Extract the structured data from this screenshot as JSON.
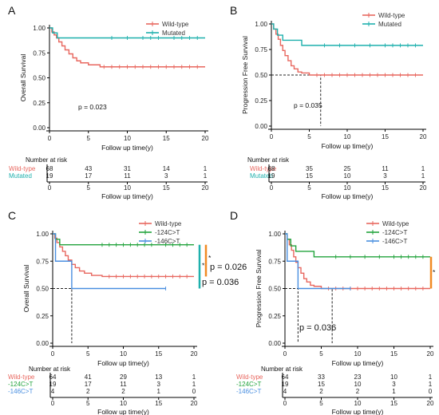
{
  "colors": {
    "wild": "#e8675f",
    "mut": "#1fb0ad",
    "c124": "#22a33c",
    "c146": "#4a8fe0",
    "sig": "#f08a24"
  },
  "chart_data": [
    {
      "panel": "A",
      "type": "line",
      "xlabel": "Follow up time(y)",
      "ylabel": "Overall Survival",
      "xlim": [
        0,
        20
      ],
      "ylim": [
        0,
        1
      ],
      "xticks": [
        0,
        5,
        10,
        15,
        20
      ],
      "yticks": [
        "0.00",
        "0.25",
        "0.50",
        "0.75",
        "1.00"
      ],
      "grid": false,
      "legend_position": "top-right",
      "series": [
        {
          "name": "Wild-type",
          "color": "wild",
          "x": [
            0,
            0.3,
            0.6,
            0.9,
            1.2,
            1.6,
            2.0,
            2.5,
            3.0,
            3.5,
            4.0,
            5.0,
            6.5,
            20
          ],
          "y": [
            1.0,
            0.96,
            0.93,
            0.9,
            0.86,
            0.82,
            0.78,
            0.74,
            0.7,
            0.67,
            0.65,
            0.63,
            0.61,
            0.61
          ],
          "censor": [
            7,
            8,
            9,
            10,
            11,
            12,
            13,
            14,
            15,
            16,
            17,
            18,
            19
          ]
        },
        {
          "name": "Mutated",
          "color": "mut",
          "x": [
            0,
            0.4,
            1.0,
            20
          ],
          "y": [
            1.0,
            0.95,
            0.9,
            0.9
          ],
          "censor": [
            8,
            10,
            12,
            13,
            14,
            16,
            17,
            18,
            19
          ]
        }
      ],
      "annotations": [
        {
          "text": "p = 0.023"
        }
      ],
      "risk_table": {
        "title": "Number at risk",
        "xlabel": "Follow up time(y)",
        "xticks": [
          0,
          5,
          10,
          15,
          20
        ],
        "rows": [
          {
            "label": "Wild-type",
            "color": "wild",
            "values": [
              68,
              43,
              31,
              14,
              1
            ]
          },
          {
            "label": "Mutated",
            "color": "mut",
            "values": [
              19,
              17,
              11,
              3,
              1
            ]
          }
        ]
      }
    },
    {
      "panel": "B",
      "type": "line",
      "xlabel": "Follow up time(y)",
      "ylabel": "Progression Free Survival",
      "xlim": [
        0,
        20
      ],
      "ylim": [
        0,
        1
      ],
      "xticks": [
        0,
        5,
        10,
        15,
        20
      ],
      "yticks": [
        "0.00",
        "0.25",
        "0.50",
        "0.75",
        "1.00"
      ],
      "grid": false,
      "legend_position": "top-right",
      "series": [
        {
          "name": "Wild-type",
          "color": "wild",
          "x": [
            0,
            0.3,
            0.6,
            0.9,
            1.2,
            1.5,
            1.8,
            2.2,
            2.6,
            3.0,
            3.5,
            4.0,
            5.0,
            20
          ],
          "y": [
            1.0,
            0.95,
            0.9,
            0.85,
            0.79,
            0.74,
            0.69,
            0.64,
            0.59,
            0.56,
            0.53,
            0.52,
            0.5,
            0.5
          ],
          "censor": [
            6,
            7,
            8,
            9,
            10,
            11,
            12,
            13,
            14,
            15,
            16,
            17,
            18,
            19
          ]
        },
        {
          "name": "Mutated",
          "color": "mut",
          "x": [
            0,
            0.3,
            0.8,
            1.5,
            2.5,
            4.0,
            20
          ],
          "y": [
            1.0,
            0.95,
            0.89,
            0.84,
            0.84,
            0.79,
            0.79
          ],
          "censor": [
            7,
            9,
            11,
            13,
            15,
            16,
            17,
            18,
            19
          ]
        }
      ],
      "median_x": 6.5,
      "annotations": [
        {
          "text": "p = 0.035"
        }
      ],
      "risk_table": {
        "title": "Number at risk",
        "xlabel": "Follow up time(y)",
        "xticks": [
          0,
          5,
          10,
          15,
          20
        ],
        "rows": [
          {
            "label": "Wild-type",
            "color": "wild",
            "values": [
              68,
              35,
              25,
              11,
              1
            ]
          },
          {
            "label": "Mutated",
            "color": "mut",
            "values": [
              19,
              15,
              10,
              3,
              1
            ]
          }
        ]
      }
    },
    {
      "panel": "C",
      "type": "line",
      "xlabel": "Follow up time(y)",
      "ylabel": "Overall Survival",
      "xlim": [
        0,
        20
      ],
      "ylim": [
        0,
        1
      ],
      "xticks": [
        0,
        5,
        10,
        15,
        20
      ],
      "yticks": [
        "0.00",
        "0.25",
        "0.50",
        "0.75",
        "1.00"
      ],
      "grid": false,
      "legend_position": "top-right",
      "series": [
        {
          "name": "Wild-type",
          "color": "wild",
          "x": [
            0,
            0.3,
            0.6,
            1.0,
            1.4,
            1.8,
            2.2,
            2.7,
            3.2,
            3.8,
            4.5,
            5.5,
            7.0,
            20
          ],
          "y": [
            1.0,
            0.96,
            0.92,
            0.88,
            0.84,
            0.8,
            0.76,
            0.72,
            0.69,
            0.66,
            0.64,
            0.62,
            0.61,
            0.61
          ],
          "censor": [
            8,
            9,
            10,
            11,
            12,
            13,
            14,
            15,
            16,
            17,
            18,
            19
          ]
        },
        {
          "name": "-124C>T",
          "color": "c124",
          "x": [
            0,
            0.4,
            1.0,
            20
          ],
          "y": [
            1.0,
            0.95,
            0.9,
            0.9
          ],
          "censor": [
            7,
            8,
            9,
            10,
            11,
            12,
            13,
            14,
            16,
            17,
            18,
            19
          ]
        },
        {
          "name": "-146C>T",
          "color": "c146",
          "x": [
            0,
            0.4,
            1.5,
            2.7,
            16
          ],
          "y": [
            1.0,
            0.75,
            0.75,
            0.5,
            0.5
          ],
          "censor": [
            16
          ]
        }
      ],
      "median_x": 2.7,
      "annotations": [
        {
          "text": "p = 0.026"
        },
        {
          "text": "p = 0.036"
        },
        {
          "text": "*"
        }
      ],
      "risk_table": {
        "title": "Number at risk",
        "xlabel": "Follow up time(y)",
        "xticks": [
          0,
          5,
          10,
          15,
          20
        ],
        "rows": [
          {
            "label": "Wild-type",
            "color": "wild",
            "values": [
              64,
              41,
              29,
              13,
              1
            ]
          },
          {
            "label": "-124C>T",
            "color": "c124",
            "values": [
              19,
              17,
              11,
              3,
              1
            ]
          },
          {
            "label": "-146C>T",
            "color": "c146",
            "values": [
              4,
              2,
              2,
              1,
              0
            ]
          }
        ]
      }
    },
    {
      "panel": "D",
      "type": "line",
      "xlabel": "Follow up time(y)",
      "ylabel": "Progression Free Survival",
      "xlim": [
        0,
        20
      ],
      "ylim": [
        0,
        1
      ],
      "xticks": [
        0,
        5,
        10,
        15,
        20
      ],
      "yticks": [
        "0.00",
        "0.25",
        "0.50",
        "0.75",
        "1.00"
      ],
      "grid": false,
      "legend_position": "top-right",
      "series": [
        {
          "name": "Wild-type",
          "color": "wild",
          "x": [
            0,
            0.3,
            0.6,
            0.9,
            1.2,
            1.5,
            1.8,
            2.2,
            2.6,
            3.0,
            3.5,
            4.0,
            5.0,
            20
          ],
          "y": [
            1.0,
            0.95,
            0.9,
            0.85,
            0.79,
            0.74,
            0.69,
            0.64,
            0.59,
            0.56,
            0.53,
            0.52,
            0.5,
            0.5
          ],
          "censor": [
            6,
            7,
            8,
            9,
            10,
            11,
            12,
            13,
            14,
            15,
            16,
            17,
            18,
            19
          ]
        },
        {
          "name": "-124C>T",
          "color": "c124",
          "x": [
            0,
            0.3,
            0.8,
            1.5,
            2.5,
            4.0,
            20
          ],
          "y": [
            1.0,
            0.95,
            0.89,
            0.84,
            0.84,
            0.79,
            0.79
          ],
          "censor": [
            7,
            9,
            11,
            13,
            15,
            16,
            17,
            18,
            19
          ]
        },
        {
          "name": "-146C>T",
          "color": "c146",
          "x": [
            0,
            0.3,
            1.0,
            1.8,
            9
          ],
          "y": [
            1.0,
            0.75,
            0.75,
            0.5,
            0.5
          ],
          "censor": [
            9
          ]
        }
      ],
      "median_x": [
        1.8,
        6.5
      ],
      "annotations": [
        {
          "text": "p = 0.036"
        },
        {
          "text": "*"
        }
      ],
      "risk_table": {
        "title": "Number at risk",
        "xlabel": "Follow up time(y)",
        "xticks": [
          0,
          5,
          10,
          15,
          20
        ],
        "rows": [
          {
            "label": "Wild-type",
            "color": "wild",
            "values": [
              64,
              33,
              23,
              10,
              1
            ]
          },
          {
            "label": "-124C>T",
            "color": "c124",
            "values": [
              19,
              15,
              10,
              3,
              1
            ]
          },
          {
            "label": "-146C>T",
            "color": "c146",
            "values": [
              4,
              2,
              2,
              1,
              0
            ]
          }
        ]
      }
    }
  ]
}
